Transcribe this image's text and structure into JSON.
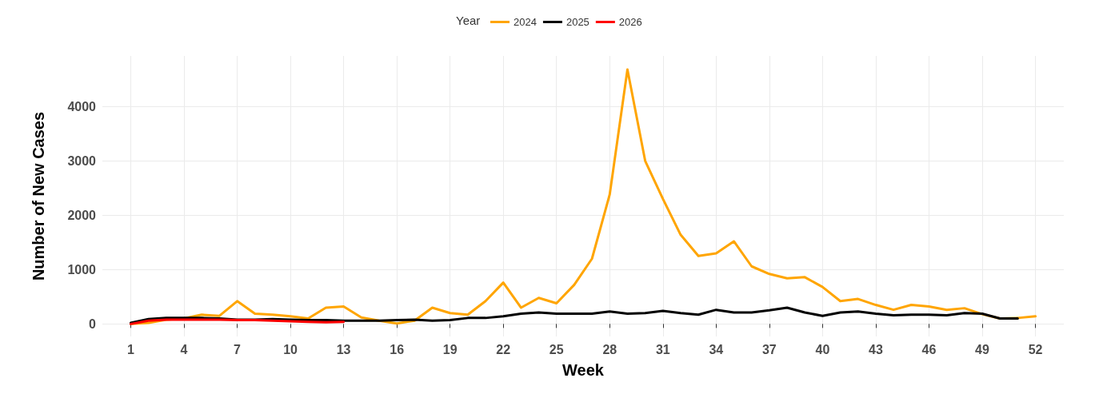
{
  "chart_data": {
    "type": "line",
    "xlabel": "Week",
    "ylabel": "Number of New Cases",
    "legend_title": "Year",
    "xlim": [
      -0.6,
      53.6
    ],
    "xticks": [
      1,
      4,
      7,
      10,
      13,
      16,
      19,
      22,
      25,
      28,
      31,
      34,
      37,
      40,
      43,
      46,
      49,
      52
    ],
    "ylim": [
      -230,
      4930
    ],
    "yticks": [
      0,
      1000,
      2000,
      3000,
      4000
    ],
    "grid": true,
    "legend": "top",
    "line_style": "solid",
    "marker": "none",
    "series": [
      {
        "name": "2024",
        "color": "#ffa500",
        "x": [
          1,
          2,
          3,
          4,
          5,
          6,
          7,
          8,
          9,
          10,
          11,
          12,
          13,
          14,
          15,
          16,
          17,
          18,
          19,
          20,
          21,
          22,
          23,
          24,
          25,
          26,
          27,
          28,
          29,
          30,
          31,
          32,
          33,
          34,
          35,
          36,
          37,
          38,
          39,
          40,
          41,
          42,
          43,
          44,
          45,
          46,
          47,
          48,
          49,
          50,
          51,
          52
        ],
        "values": [
          0,
          20,
          80,
          100,
          170,
          150,
          420,
          190,
          170,
          140,
          100,
          300,
          320,
          120,
          60,
          10,
          60,
          300,
          200,
          170,
          420,
          760,
          300,
          480,
          380,
          720,
          1200,
          2380,
          4680,
          3000,
          2300,
          1640,
          1250,
          1300,
          1520,
          1060,
          920,
          840,
          860,
          680,
          420,
          460,
          350,
          260,
          350,
          320,
          260,
          290,
          180,
          100,
          110,
          140
        ]
      },
      {
        "name": "2025",
        "color": "#000000",
        "x": [
          1,
          2,
          3,
          4,
          5,
          6,
          7,
          8,
          9,
          10,
          11,
          12,
          13,
          14,
          15,
          16,
          17,
          18,
          19,
          20,
          21,
          22,
          23,
          24,
          25,
          26,
          27,
          28,
          29,
          30,
          31,
          32,
          33,
          34,
          35,
          36,
          37,
          38,
          39,
          40,
          41,
          42,
          43,
          44,
          45,
          46,
          47,
          48,
          49,
          50,
          51
        ],
        "values": [
          20,
          90,
          110,
          110,
          110,
          100,
          80,
          80,
          90,
          80,
          70,
          70,
          60,
          60,
          60,
          70,
          80,
          60,
          70,
          110,
          110,
          140,
          190,
          210,
          190,
          190,
          190,
          230,
          190,
          200,
          240,
          200,
          170,
          260,
          210,
          210,
          250,
          300,
          210,
          150,
          210,
          230,
          190,
          160,
          170,
          170,
          160,
          200,
          190,
          100,
          100
        ]
      },
      {
        "name": "2026",
        "color": "#ff0000",
        "x": [
          1,
          2,
          3,
          4,
          5,
          6,
          7,
          8,
          9,
          10,
          11,
          12,
          13
        ],
        "values": [
          0,
          60,
          80,
          80,
          80,
          80,
          70,
          70,
          60,
          50,
          40,
          30,
          40
        ]
      }
    ]
  }
}
